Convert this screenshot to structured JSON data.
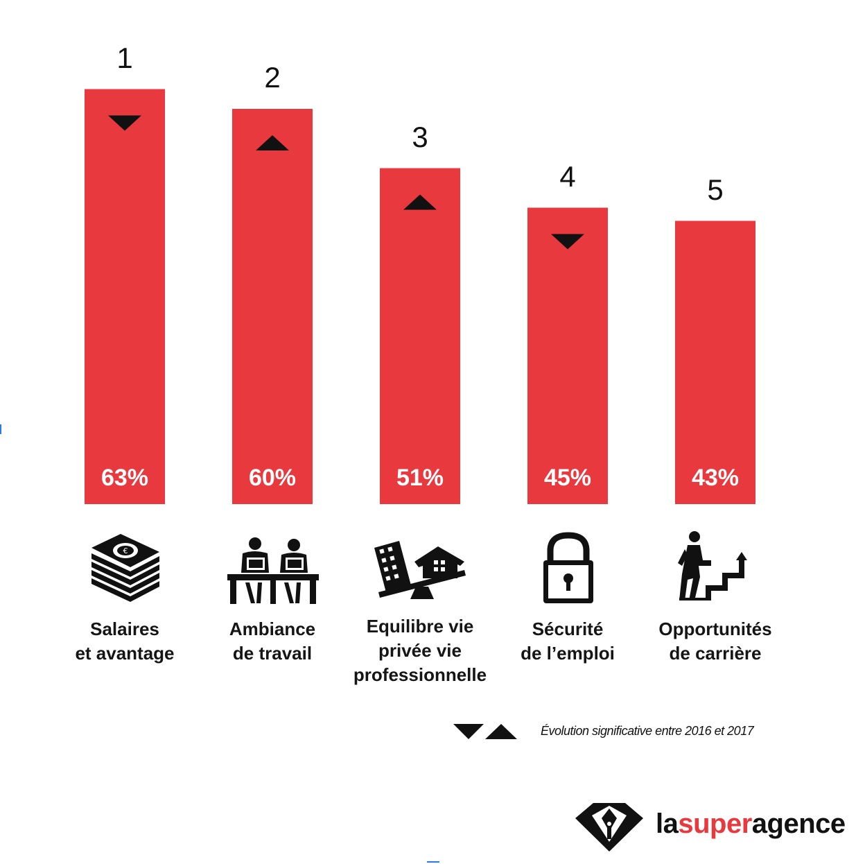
{
  "colors": {
    "bar": "#e8393f",
    "text": "#111111",
    "bar_label": "#ffffff",
    "brand_accent": "#e8393f"
  },
  "chart_data": {
    "type": "bar",
    "categories": [
      "Salaires\net avantage",
      "Ambiance\nde travail",
      "Equilibre vie\nprivée vie\nprofessionnelle",
      "Sécurité\nde l’emploi",
      "Opportunités\nde carrière"
    ],
    "values": [
      63,
      60,
      51,
      45,
      43
    ],
    "value_labels": [
      "63%",
      "60%",
      "51%",
      "45%",
      "43%"
    ],
    "ranks": [
      "1",
      "2",
      "3",
      "4",
      "5"
    ],
    "trends": [
      "down",
      "up",
      "up",
      "down",
      "none"
    ],
    "icons": [
      "money-stack-icon",
      "office-workers-icon",
      "work-life-balance-icon",
      "padlock-icon",
      "career-stairs-icon"
    ],
    "title": "",
    "xlabel": "",
    "ylabel": "",
    "grid": false,
    "legend": {
      "text": "Évolution significative entre 2016 et 2017",
      "symbols": [
        "down",
        "up"
      ],
      "placement": "bottom-right"
    }
  },
  "logo": {
    "text_prefix": "la",
    "text_accent": "super",
    "text_suffix": "agence"
  }
}
